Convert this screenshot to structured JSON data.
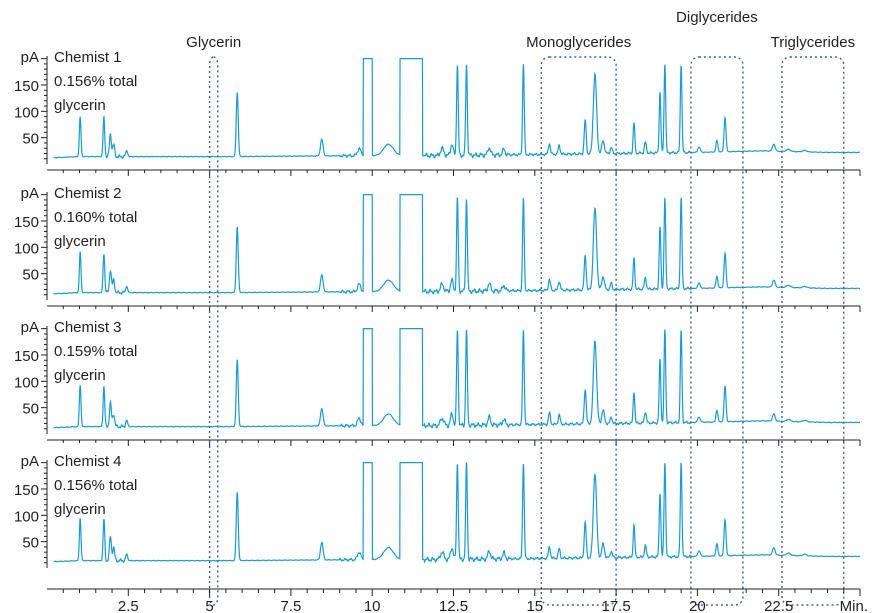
{
  "chart_data": {
    "type": "line",
    "x_unit": "Min.",
    "x_ticks": [
      2.5,
      5,
      7.5,
      10,
      12.5,
      15,
      17.5,
      20,
      22.5
    ],
    "x_tick_labels": [
      "2.5",
      "5",
      "7.5",
      "10",
      "12.5",
      "15",
      "17.5",
      "20",
      "22.5"
    ],
    "xlim": [
      0,
      25
    ],
    "y_unit": "pA",
    "y_ticks": [
      50,
      100,
      150
    ],
    "y_tick_labels": [
      "50",
      "100",
      "150"
    ],
    "ylim": [
      0,
      205
    ],
    "series_color": "#1a9ad6",
    "region_color": "#3a5ea8",
    "region_labels": [
      {
        "text": "Glycerin",
        "x_range": [
          5.0,
          5.25
        ]
      },
      {
        "text": "Monoglycerides",
        "x_range": [
          15.2,
          17.5
        ]
      },
      {
        "text": "Diglycerides",
        "x_range": [
          19.8,
          21.4
        ]
      },
      {
        "text": "Triglycerides",
        "x_range": [
          22.6,
          24.5
        ]
      }
    ],
    "panels": [
      {
        "label": "Chemist 1",
        "result": "0.156%  total",
        "result_unit": "glycerin",
        "glycerin_percent": 0.156
      },
      {
        "label": "Chemist 2",
        "result": "0.160% total",
        "result_unit": "glycerin",
        "glycerin_percent": 0.16
      },
      {
        "label": "Chemist 3",
        "result": "0.159% total",
        "result_unit": "glycerin",
        "glycerin_percent": 0.159
      },
      {
        "label": "Chemist 4",
        "result": "0.156% total",
        "result_unit": "glycerin",
        "glycerin_percent": 0.156
      }
    ],
    "baseline": [
      [
        0.2,
        12
      ],
      [
        1.0,
        14
      ],
      [
        5.5,
        14
      ],
      [
        10.0,
        16
      ],
      [
        12.0,
        16
      ],
      [
        15.0,
        18
      ],
      [
        20.0,
        22
      ],
      [
        22.0,
        25
      ],
      [
        24.0,
        22
      ],
      [
        25.0,
        22
      ]
    ],
    "peaks": [
      {
        "x": 1.02,
        "y": 92,
        "w": 0.025
      },
      {
        "x": 1.75,
        "y": 90,
        "w": 0.025
      },
      {
        "x": 1.95,
        "y": 58,
        "w": 0.03
      },
      {
        "x": 2.05,
        "y": 38,
        "w": 0.03
      },
      {
        "x": 2.45,
        "y": 26,
        "w": 0.03
      },
      {
        "x": 5.85,
        "y": 140,
        "w": 0.03
      },
      {
        "x": 8.45,
        "y": 48,
        "w": 0.04
      },
      {
        "x": 9.6,
        "y": 30,
        "w": 0.05
      },
      {
        "x": 10.5,
        "y": 38,
        "w": 0.15
      },
      {
        "x": 12.15,
        "y": 30,
        "w": 0.05
      },
      {
        "x": 12.45,
        "y": 38,
        "w": 0.04
      },
      {
        "x": 12.62,
        "y": 195,
        "w": 0.025
      },
      {
        "x": 12.9,
        "y": 195,
        "w": 0.025
      },
      {
        "x": 13.6,
        "y": 32,
        "w": 0.04
      },
      {
        "x": 14.05,
        "y": 28,
        "w": 0.04
      },
      {
        "x": 14.65,
        "y": 195,
        "w": 0.025
      },
      {
        "x": 15.45,
        "y": 40,
        "w": 0.03
      },
      {
        "x": 15.75,
        "y": 36,
        "w": 0.03
      },
      {
        "x": 16.55,
        "y": 85,
        "w": 0.03
      },
      {
        "x": 16.85,
        "y": 175,
        "w": 0.05
      },
      {
        "x": 17.1,
        "y": 45,
        "w": 0.04
      },
      {
        "x": 17.35,
        "y": 32,
        "w": 0.03
      },
      {
        "x": 18.05,
        "y": 80,
        "w": 0.025
      },
      {
        "x": 18.4,
        "y": 42,
        "w": 0.03
      },
      {
        "x": 18.85,
        "y": 140,
        "w": 0.025
      },
      {
        "x": 19.0,
        "y": 195,
        "w": 0.025
      },
      {
        "x": 19.5,
        "y": 195,
        "w": 0.025
      },
      {
        "x": 20.05,
        "y": 32,
        "w": 0.04
      },
      {
        "x": 20.6,
        "y": 45,
        "w": 0.03
      },
      {
        "x": 20.85,
        "y": 90,
        "w": 0.03
      },
      {
        "x": 22.35,
        "y": 38,
        "w": 0.04
      },
      {
        "x": 22.8,
        "y": 28,
        "w": 0.06
      },
      {
        "x": 23.3,
        "y": 26,
        "w": 0.06
      }
    ],
    "flat_tops": [
      {
        "x_start": 9.72,
        "x_end": 10.0,
        "y": 200
      },
      {
        "x_start": 10.85,
        "x_end": 11.55,
        "y": 200
      }
    ]
  }
}
